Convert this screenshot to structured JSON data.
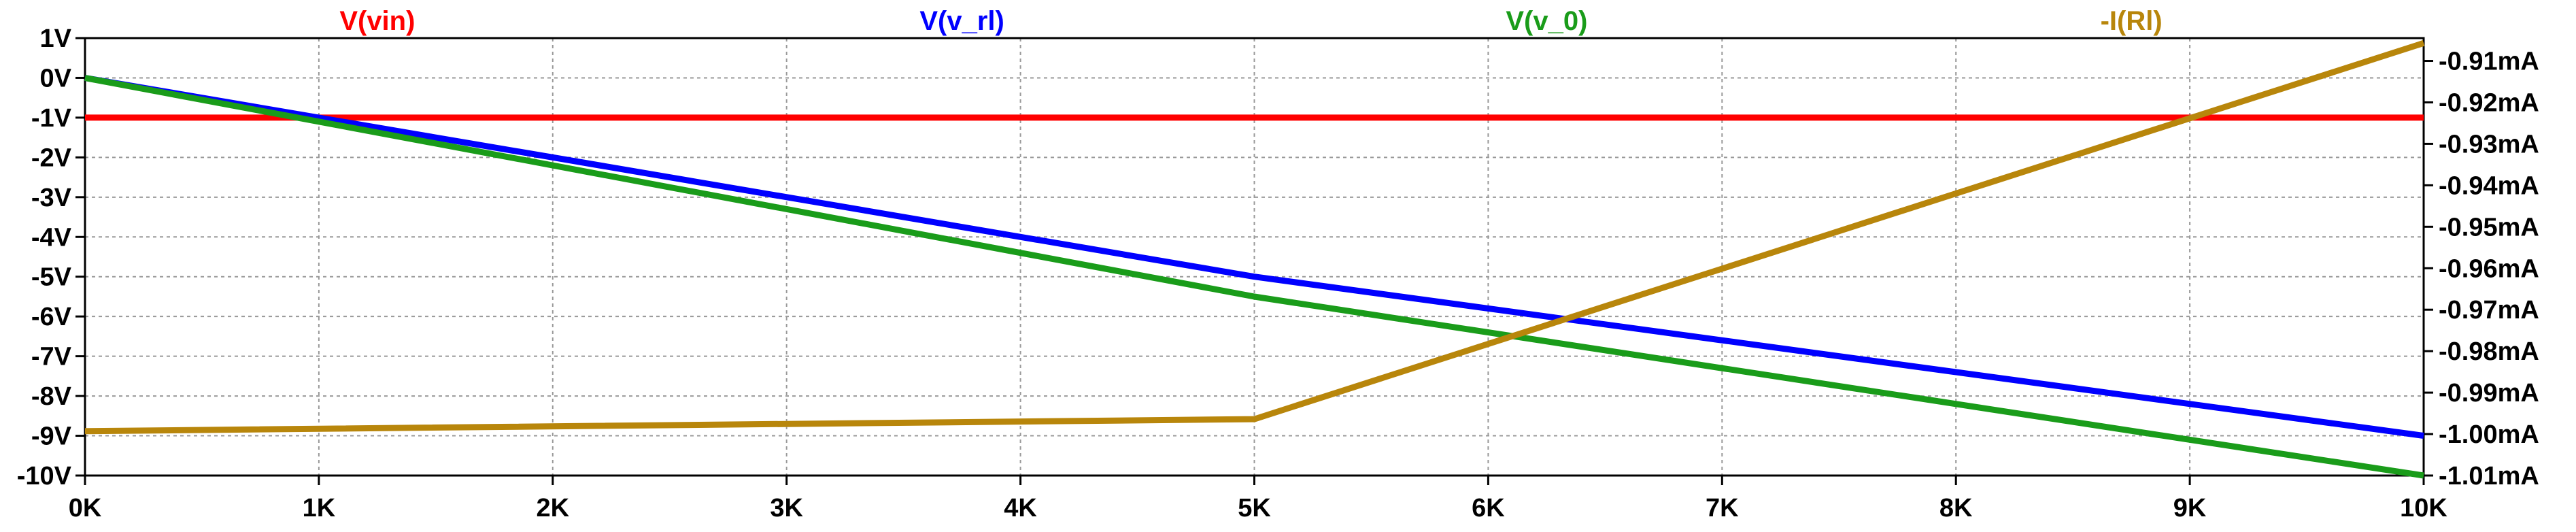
{
  "chart_data": {
    "type": "line",
    "grid": true,
    "series_labels": [
      "V(vin)",
      "V(v_rl)",
      "V(v_0)",
      "-I(Rl)"
    ],
    "series": [
      {
        "name": "V(vin)",
        "axis": "left",
        "color": "#ff0000",
        "points": [
          [
            0,
            -1
          ],
          [
            10000,
            -1
          ]
        ]
      },
      {
        "name": "V(v_rl)",
        "axis": "left",
        "color": "#0000ff",
        "points": [
          [
            0,
            0
          ],
          [
            5000,
            -5
          ],
          [
            10000,
            -9
          ]
        ]
      },
      {
        "name": "V(v_0)",
        "axis": "left",
        "color": "#1a9c1a",
        "points": [
          [
            0,
            0
          ],
          [
            1000,
            -1.1
          ],
          [
            5000,
            -5.5
          ],
          [
            10000,
            -10
          ]
        ]
      },
      {
        "name": "-I(Rl)",
        "axis": "right",
        "color": "#b8860b",
        "points": [
          [
            0,
            -0.9993
          ],
          [
            5000,
            -0.9964
          ],
          [
            10000,
            -0.9057
          ]
        ]
      }
    ],
    "x": {
      "range": [
        0,
        10000
      ],
      "ticks": [
        0,
        1000,
        2000,
        3000,
        4000,
        5000,
        6000,
        7000,
        8000,
        9000,
        10000
      ],
      "tick_labels": [
        "0K",
        "1K",
        "2K",
        "3K",
        "4K",
        "5K",
        "6K",
        "7K",
        "8K",
        "9K",
        "10K"
      ]
    },
    "y_left": {
      "range": [
        -10,
        1
      ],
      "ticks": [
        1,
        0,
        -1,
        -2,
        -3,
        -4,
        -5,
        -6,
        -7,
        -8,
        -9,
        -10
      ],
      "tick_labels": [
        "1V",
        "0V",
        "-1V",
        "-2V",
        "-3V",
        "-4V",
        "-5V",
        "-6V",
        "-7V",
        "-8V",
        "-9V",
        "-10V"
      ]
    },
    "y_right": {
      "range": [
        -1.01,
        -0.9045
      ],
      "ticks": [
        -0.91,
        -0.92,
        -0.93,
        -0.94,
        -0.95,
        -0.96,
        -0.97,
        -0.98,
        -0.99,
        -1.0,
        -1.01
      ],
      "tick_labels": [
        "-0.91mA",
        "-0.92mA",
        "-0.93mA",
        "-0.94mA",
        "-0.95mA",
        "-0.96mA",
        "-0.97mA",
        "-0.98mA",
        "-0.99mA",
        "-1.00mA",
        "-1.01mA"
      ]
    }
  }
}
